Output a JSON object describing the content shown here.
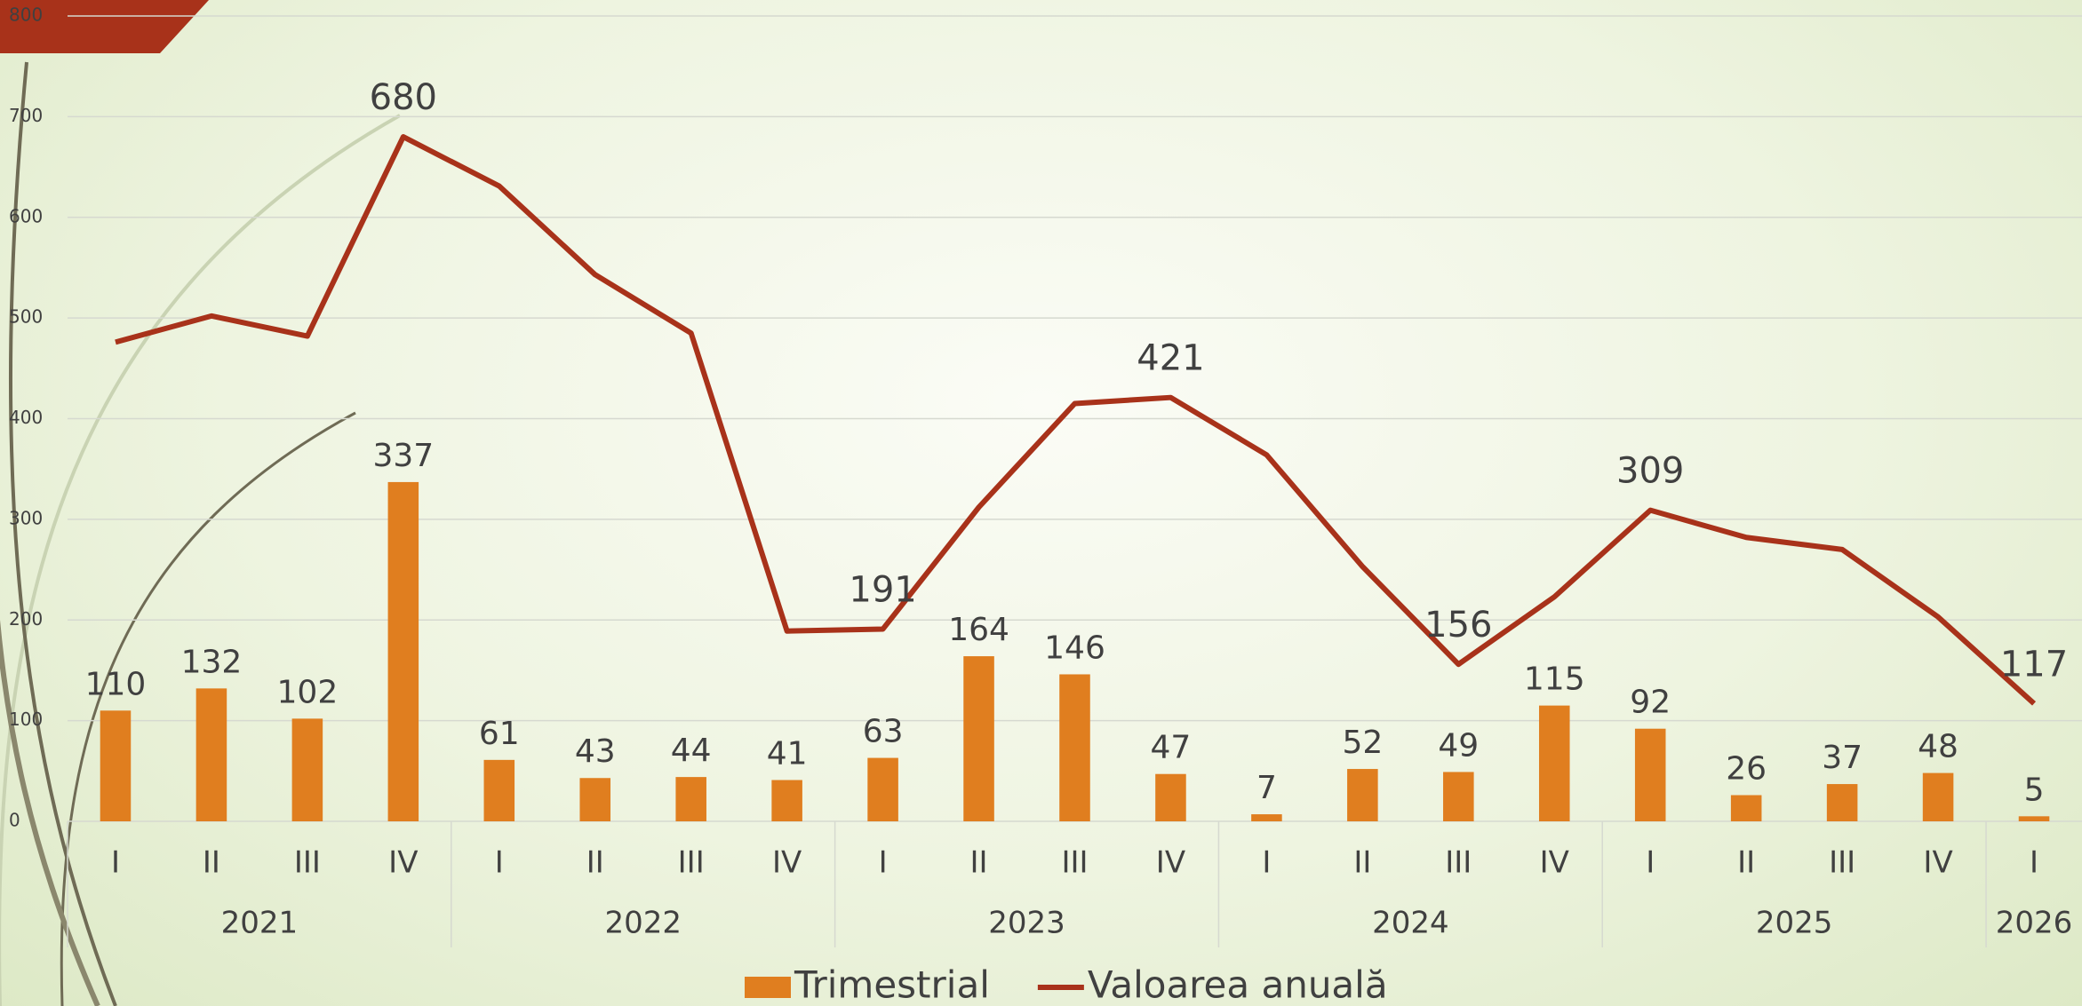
{
  "chart_data": {
    "type": "bar-line",
    "groups": [
      {
        "label": "2021",
        "categories": [
          "I",
          "II",
          "III",
          "IV"
        ]
      },
      {
        "label": "2022",
        "categories": [
          "I",
          "II",
          "III",
          "IV"
        ]
      },
      {
        "label": "2023",
        "categories": [
          "I",
          "II",
          "III",
          "IV"
        ]
      },
      {
        "label": "2024",
        "categories": [
          "I",
          "II",
          "III",
          "IV"
        ]
      },
      {
        "label": "2025",
        "categories": [
          "I",
          "II",
          "III",
          "IV"
        ]
      },
      {
        "label": "2026",
        "categories": [
          "I"
        ]
      }
    ],
    "series": [
      {
        "name": "Trimestrial",
        "type": "bar",
        "color": "#e07e1f",
        "values": [
          110,
          132,
          102,
          337,
          61,
          43,
          44,
          41,
          63,
          164,
          146,
          47,
          7,
          52,
          49,
          115,
          92,
          26,
          37,
          48,
          5
        ]
      },
      {
        "name": "Valoarea anuală",
        "type": "line",
        "color": "#a8321a",
        "values": [
          476,
          502,
          482,
          680,
          631,
          543,
          485,
          189,
          191,
          312,
          415,
          421,
          364,
          253,
          156,
          223,
          309,
          282,
          270,
          203,
          117
        ],
        "value_labels": [
          null,
          null,
          null,
          "680",
          null,
          null,
          null,
          null,
          "191",
          null,
          null,
          "421",
          null,
          null,
          "156",
          null,
          "309",
          null,
          null,
          null,
          "117"
        ]
      }
    ],
    "ylim": [
      0,
      800
    ],
    "yticks": [
      0,
      100,
      200,
      300,
      400,
      500,
      600,
      700,
      800
    ],
    "grid": true,
    "legend": "bottom"
  }
}
